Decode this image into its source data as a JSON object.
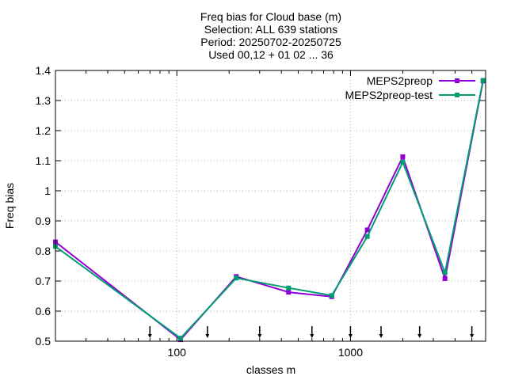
{
  "chart_data": {
    "type": "line",
    "title_lines": [
      "Freq bias  for Cloud base (m)",
      "Selection: ALL    639 stations",
      "Period: 20250702-20250725",
      "Used 00,12 + 01 02 ... 36"
    ],
    "xlabel": "classes m",
    "ylabel": "Freq bias",
    "x_scale": "log",
    "xlim": [
      20,
      6000
    ],
    "ylim": [
      0.5,
      1.4
    ],
    "x_tick_labels": [
      {
        "value": 100,
        "label": "100"
      },
      {
        "value": 1000,
        "label": "1000"
      }
    ],
    "y_ticks": [
      {
        "value": 0.5,
        "label": "0.5"
      },
      {
        "value": 0.6,
        "label": "0.6"
      },
      {
        "value": 0.7,
        "label": "0.7"
      },
      {
        "value": 0.8,
        "label": "0.8"
      },
      {
        "value": 0.9,
        "label": "0.9"
      },
      {
        "value": 1.0,
        "label": "1"
      },
      {
        "value": 1.1,
        "label": "1.1"
      },
      {
        "value": 1.2,
        "label": "1.2"
      },
      {
        "value": 1.3,
        "label": "1.3"
      },
      {
        "value": 1.4,
        "label": "1.4"
      }
    ],
    "class_markers": [
      70,
      150,
      300,
      600,
      1000,
      1500,
      2500,
      5000
    ],
    "grid": true,
    "legend_position": "top-right",
    "x": [
      20,
      105,
      220,
      440,
      780,
      1250,
      2000,
      3500,
      5800
    ],
    "series": [
      {
        "name": "MEPS2preop",
        "color": "#9400d3",
        "values": [
          0.83,
          0.505,
          0.715,
          0.663,
          0.648,
          0.87,
          1.113,
          0.708,
          1.365
        ]
      },
      {
        "name": "MEPS2preop-test",
        "color": "#009e73",
        "values": [
          0.815,
          0.51,
          0.71,
          0.677,
          0.652,
          0.848,
          1.095,
          0.728,
          1.367
        ]
      }
    ]
  }
}
